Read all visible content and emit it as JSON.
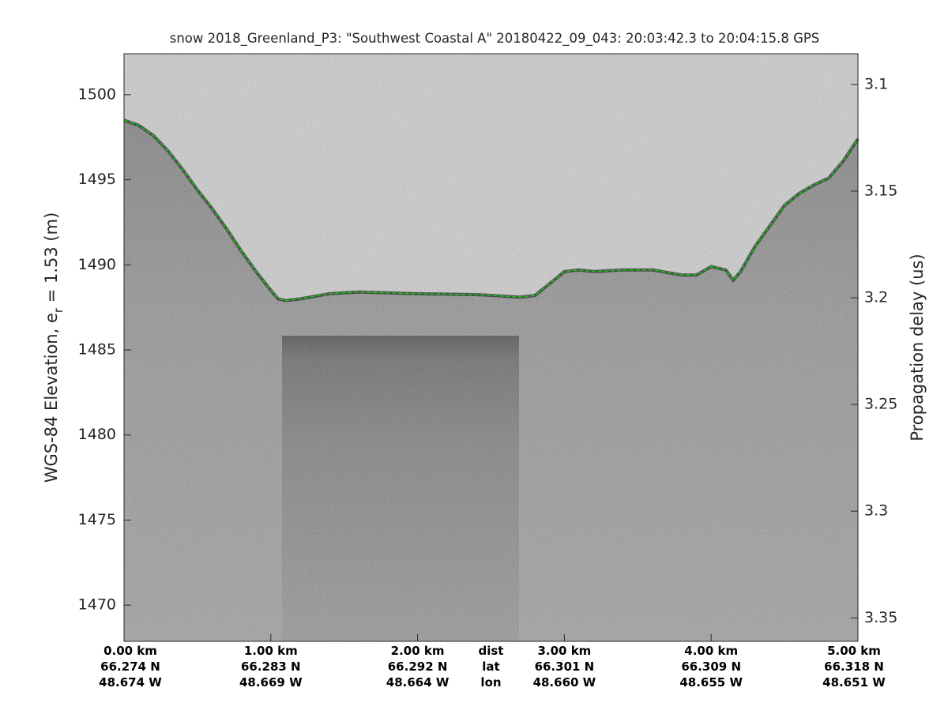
{
  "chart_data": {
    "type": "echogram",
    "title": "snow 2018_Greenland_P3: \"Southwest Coastal A\"  20180422_09_043: 20:03:42.3 to 20:04:15.8 GPS",
    "ylabel": {
      "text": "WGS-84 Elevation, e",
      "subscript": "r",
      "suffix": " = 1.53 (m)"
    },
    "y2label": "Propagation delay (us)",
    "xlim": [
      0,
      5
    ],
    "xticks": [
      {
        "value": 0,
        "label": "0.00 km"
      },
      {
        "value": 1,
        "label": "1.00 km"
      },
      {
        "value": 2,
        "label": "2.00 km"
      },
      {
        "value": 3,
        "label": "3.00 km"
      },
      {
        "value": 4,
        "label": "4.00 km"
      },
      {
        "value": 5,
        "label": "5.00 km"
      }
    ],
    "lat_labels": [
      "66.274 N",
      "66.283 N",
      "66.292 N",
      "66.301 N",
      "66.309 N",
      "66.318 N"
    ],
    "lon_labels": [
      "48.674 W",
      "48.669 W",
      "48.664 W",
      "48.660 W",
      "48.655 W",
      "48.651 W"
    ],
    "row_names": [
      "dist",
      "lat",
      "lon"
    ],
    "ylim": [
      1467.87,
      1502.41
    ],
    "yticks": [
      1470,
      1475,
      1480,
      1485,
      1490,
      1495,
      1500
    ],
    "y2lim": [
      3.361,
      3.0856
    ],
    "y2ticks": [
      3.1,
      3.15,
      3.2,
      3.25,
      3.3,
      3.35
    ],
    "series": [
      {
        "color": "#00e000",
        "x": [
          0,
          0.1,
          0.2,
          0.3,
          0.4,
          0.5,
          0.6,
          0.7,
          0.8,
          0.9,
          1.0,
          1.05,
          1.1,
          1.2,
          1.4,
          1.6,
          2.0,
          2.4,
          2.7,
          2.8,
          2.9,
          3.0,
          3.1,
          3.2,
          3.4,
          3.6,
          3.8,
          3.9,
          4.0,
          4.1,
          4.15,
          4.2,
          4.3,
          4.4,
          4.5,
          4.6,
          4.7,
          4.8,
          4.9,
          5.0
        ],
        "values": [
          1498.5,
          1498.2,
          1497.6,
          1496.7,
          1495.6,
          1494.4,
          1493.3,
          1492.1,
          1490.8,
          1489.6,
          1488.5,
          1488.0,
          1487.9,
          1488.0,
          1488.3,
          1488.4,
          1488.3,
          1488.25,
          1488.1,
          1488.2,
          1488.9,
          1489.6,
          1489.7,
          1489.6,
          1489.7,
          1489.7,
          1489.4,
          1489.4,
          1489.9,
          1489.7,
          1489.1,
          1489.6,
          1491.1,
          1492.3,
          1493.5,
          1494.2,
          1494.7,
          1495.1,
          1496.1,
          1497.4
        ]
      }
    ]
  }
}
